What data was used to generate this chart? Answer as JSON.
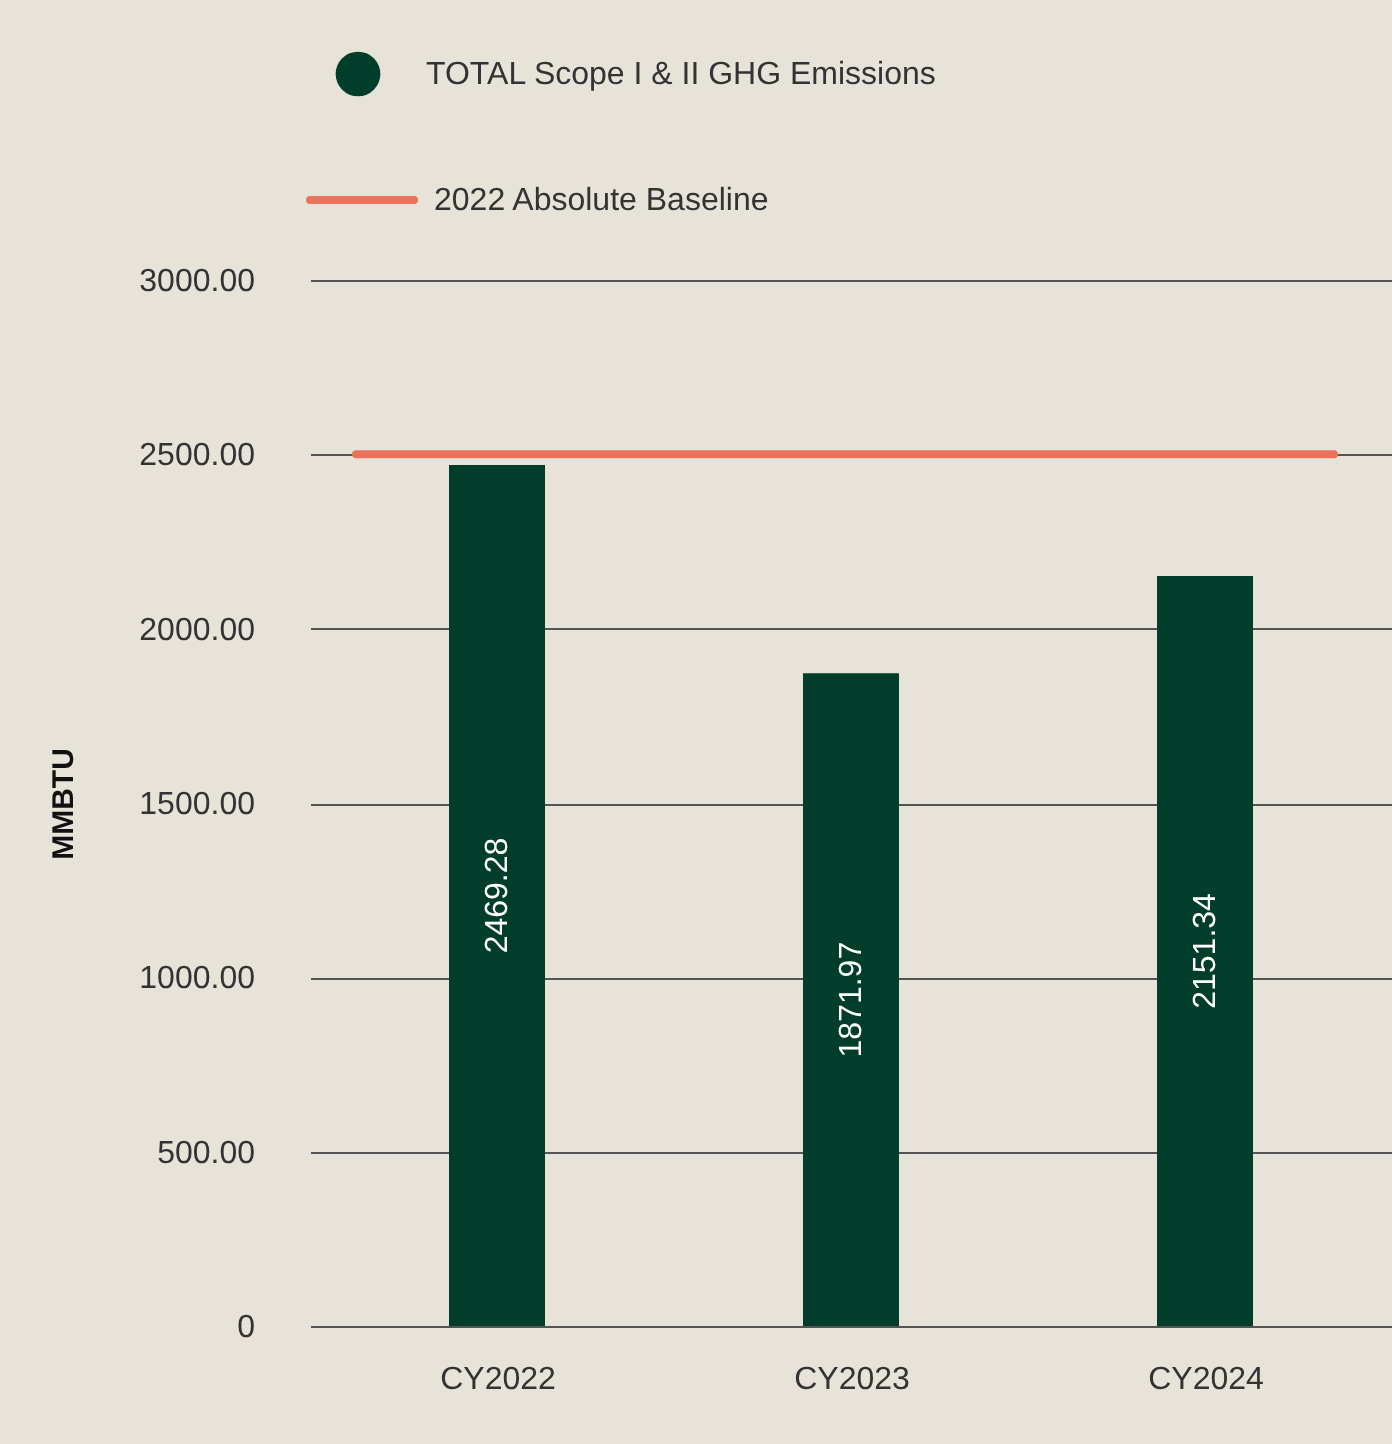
{
  "chart_data": {
    "type": "bar",
    "ylabel": "MMBTU",
    "categories": [
      "CY2022",
      "CY2023",
      "CY2024"
    ],
    "series": [
      {
        "name": "TOTAL Scope I & II GHG Emissions",
        "color": "#003d2b",
        "values": [
          2469.28,
          1871.97,
          2151.34
        ]
      }
    ],
    "data_labels": true,
    "ylim": [
      0,
      3000
    ],
    "yticks": [
      {
        "value": 0,
        "label": "0"
      },
      {
        "value": 500,
        "label": "500.00"
      },
      {
        "value": 1000,
        "label": "1000.00"
      },
      {
        "value": 1500,
        "label": "1500.00"
      },
      {
        "value": 2000,
        "label": "2000.00"
      },
      {
        "value": 2500,
        "label": "2500.00"
      },
      {
        "value": 3000,
        "label": "3000.00"
      }
    ],
    "ref_lines": [
      {
        "axis": "y",
        "value": 2500,
        "label": "2022 Absolute Baseline",
        "color": "#e8735a"
      }
    ],
    "grid": "y",
    "legend": "top left"
  }
}
